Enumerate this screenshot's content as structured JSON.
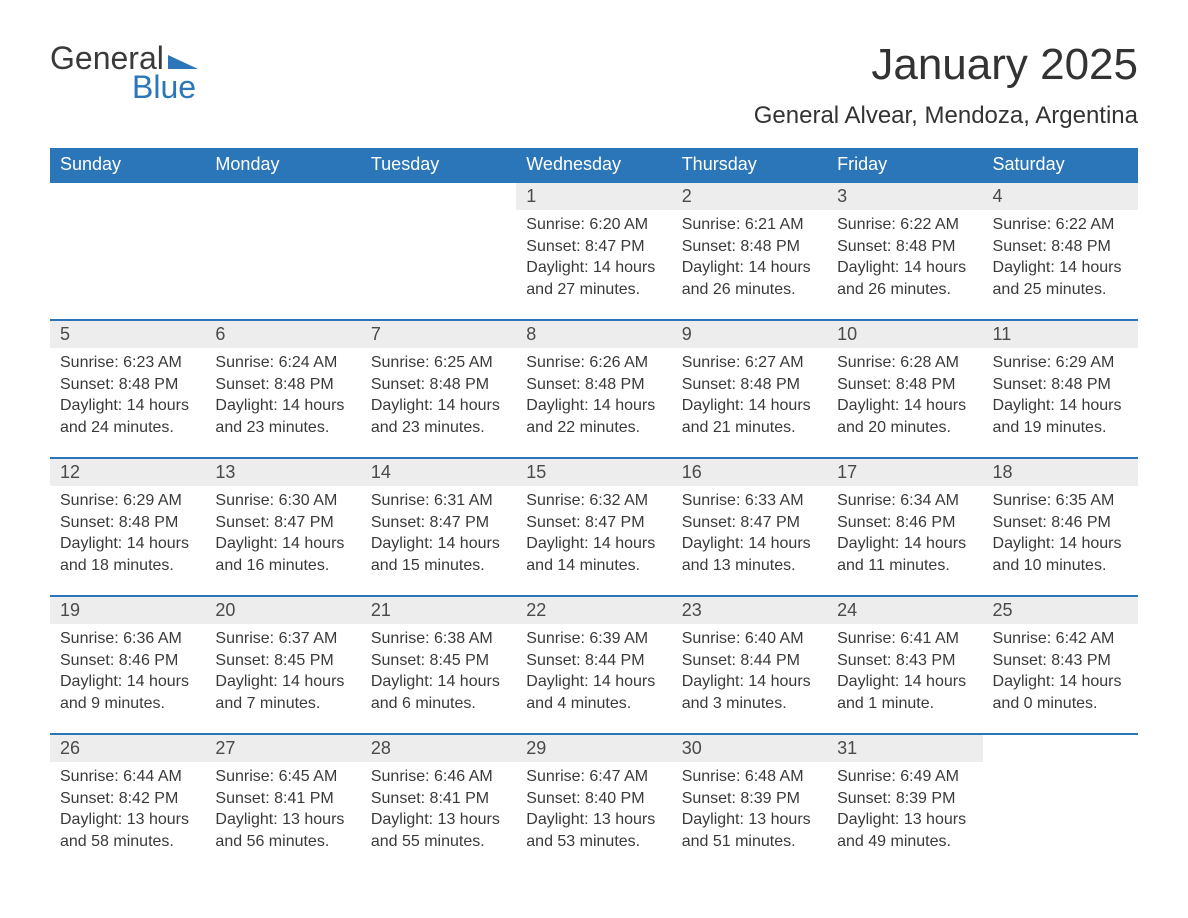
{
  "logo": {
    "word1": "General",
    "word2": "Blue",
    "wedge_color": "#2a76b8"
  },
  "title": "January 2025",
  "location": "General Alvear, Mendoza, Argentina",
  "colors": {
    "header_bg": "#2a76b8",
    "header_text": "#ffffff",
    "daynum_bg": "#ededed",
    "divider": "#2a76b8",
    "body_text": "#3a3a3a"
  },
  "weekdays": [
    "Sunday",
    "Monday",
    "Tuesday",
    "Wednesday",
    "Thursday",
    "Friday",
    "Saturday"
  ],
  "weeks": [
    [
      null,
      null,
      null,
      {
        "n": "1",
        "sr": "6:20 AM",
        "ss": "8:47 PM",
        "dl": "14 hours and 27 minutes."
      },
      {
        "n": "2",
        "sr": "6:21 AM",
        "ss": "8:48 PM",
        "dl": "14 hours and 26 minutes."
      },
      {
        "n": "3",
        "sr": "6:22 AM",
        "ss": "8:48 PM",
        "dl": "14 hours and 26 minutes."
      },
      {
        "n": "4",
        "sr": "6:22 AM",
        "ss": "8:48 PM",
        "dl": "14 hours and 25 minutes."
      }
    ],
    [
      {
        "n": "5",
        "sr": "6:23 AM",
        "ss": "8:48 PM",
        "dl": "14 hours and 24 minutes."
      },
      {
        "n": "6",
        "sr": "6:24 AM",
        "ss": "8:48 PM",
        "dl": "14 hours and 23 minutes."
      },
      {
        "n": "7",
        "sr": "6:25 AM",
        "ss": "8:48 PM",
        "dl": "14 hours and 23 minutes."
      },
      {
        "n": "8",
        "sr": "6:26 AM",
        "ss": "8:48 PM",
        "dl": "14 hours and 22 minutes."
      },
      {
        "n": "9",
        "sr": "6:27 AM",
        "ss": "8:48 PM",
        "dl": "14 hours and 21 minutes."
      },
      {
        "n": "10",
        "sr": "6:28 AM",
        "ss": "8:48 PM",
        "dl": "14 hours and 20 minutes."
      },
      {
        "n": "11",
        "sr": "6:29 AM",
        "ss": "8:48 PM",
        "dl": "14 hours and 19 minutes."
      }
    ],
    [
      {
        "n": "12",
        "sr": "6:29 AM",
        "ss": "8:48 PM",
        "dl": "14 hours and 18 minutes."
      },
      {
        "n": "13",
        "sr": "6:30 AM",
        "ss": "8:47 PM",
        "dl": "14 hours and 16 minutes."
      },
      {
        "n": "14",
        "sr": "6:31 AM",
        "ss": "8:47 PM",
        "dl": "14 hours and 15 minutes."
      },
      {
        "n": "15",
        "sr": "6:32 AM",
        "ss": "8:47 PM",
        "dl": "14 hours and 14 minutes."
      },
      {
        "n": "16",
        "sr": "6:33 AM",
        "ss": "8:47 PM",
        "dl": "14 hours and 13 minutes."
      },
      {
        "n": "17",
        "sr": "6:34 AM",
        "ss": "8:46 PM",
        "dl": "14 hours and 11 minutes."
      },
      {
        "n": "18",
        "sr": "6:35 AM",
        "ss": "8:46 PM",
        "dl": "14 hours and 10 minutes."
      }
    ],
    [
      {
        "n": "19",
        "sr": "6:36 AM",
        "ss": "8:46 PM",
        "dl": "14 hours and 9 minutes."
      },
      {
        "n": "20",
        "sr": "6:37 AM",
        "ss": "8:45 PM",
        "dl": "14 hours and 7 minutes."
      },
      {
        "n": "21",
        "sr": "6:38 AM",
        "ss": "8:45 PM",
        "dl": "14 hours and 6 minutes."
      },
      {
        "n": "22",
        "sr": "6:39 AM",
        "ss": "8:44 PM",
        "dl": "14 hours and 4 minutes."
      },
      {
        "n": "23",
        "sr": "6:40 AM",
        "ss": "8:44 PM",
        "dl": "14 hours and 3 minutes."
      },
      {
        "n": "24",
        "sr": "6:41 AM",
        "ss": "8:43 PM",
        "dl": "14 hours and 1 minute."
      },
      {
        "n": "25",
        "sr": "6:42 AM",
        "ss": "8:43 PM",
        "dl": "14 hours and 0 minutes."
      }
    ],
    [
      {
        "n": "26",
        "sr": "6:44 AM",
        "ss": "8:42 PM",
        "dl": "13 hours and 58 minutes."
      },
      {
        "n": "27",
        "sr": "6:45 AM",
        "ss": "8:41 PM",
        "dl": "13 hours and 56 minutes."
      },
      {
        "n": "28",
        "sr": "6:46 AM",
        "ss": "8:41 PM",
        "dl": "13 hours and 55 minutes."
      },
      {
        "n": "29",
        "sr": "6:47 AM",
        "ss": "8:40 PM",
        "dl": "13 hours and 53 minutes."
      },
      {
        "n": "30",
        "sr": "6:48 AM",
        "ss": "8:39 PM",
        "dl": "13 hours and 51 minutes."
      },
      {
        "n": "31",
        "sr": "6:49 AM",
        "ss": "8:39 PM",
        "dl": "13 hours and 49 minutes."
      },
      null
    ]
  ],
  "labels": {
    "sunrise": "Sunrise: ",
    "sunset": "Sunset: ",
    "daylight": "Daylight: "
  }
}
